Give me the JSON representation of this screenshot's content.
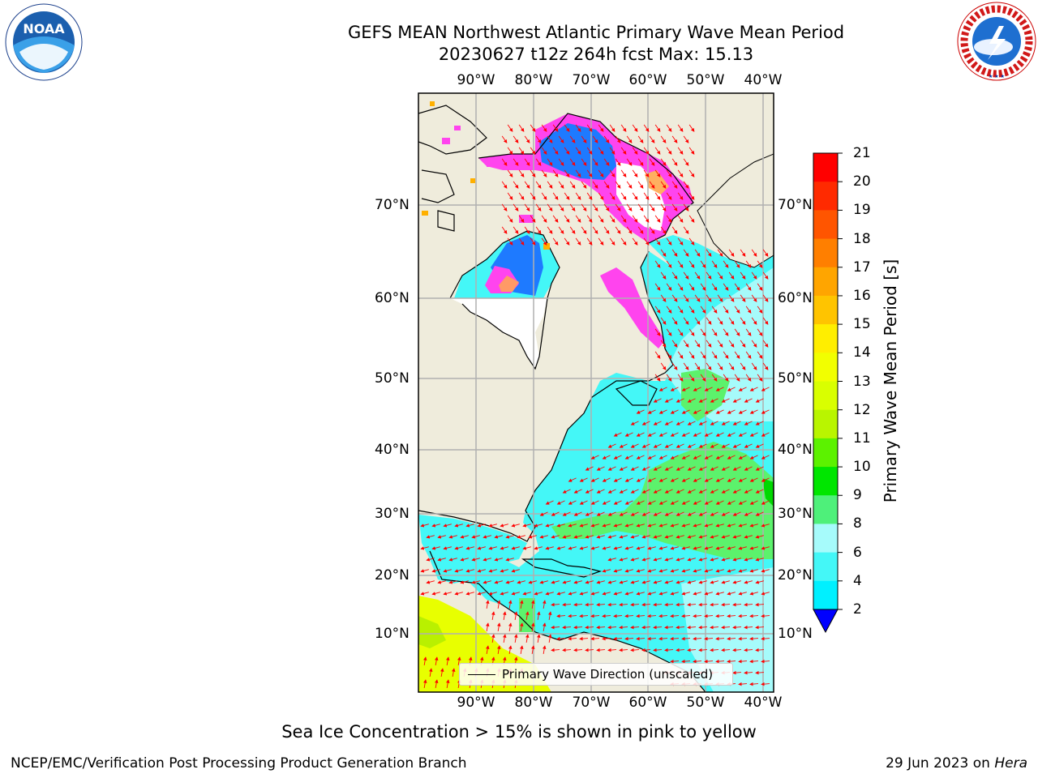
{
  "title": {
    "line1": "GEFS MEAN Northwest Atlantic Primary Wave Mean Period",
    "line2": "20230627 t12z 264h fcst   Max: 15.13"
  },
  "logos": {
    "left": {
      "text": "NOAA",
      "icon": "noaa-logo-icon"
    },
    "right": {
      "text": "NATIONAL WEATHER SERVICE",
      "icon": "nws-logo-icon"
    }
  },
  "map": {
    "lon_ticks": [
      "90°W",
      "80°W",
      "70°W",
      "60°W",
      "50°W",
      "40°W"
    ],
    "lat_ticks": [
      "70°N",
      "60°N",
      "50°N",
      "40°N",
      "30°N",
      "20°N",
      "10°N"
    ],
    "legend_label": "Primary Wave Direction (unscaled)",
    "colors": {
      "land": "#efecdc",
      "ocean_short_period": "#44f7f7",
      "ocean_light": "#a6fbfb",
      "ocean_green": "#5cf26c",
      "ice_pink": "#ff44ee",
      "ice_blue": "#1e7aff",
      "arrow": "#ff0000",
      "grid": "#b0b0b0"
    }
  },
  "colorbar": {
    "title": "Primary Wave Mean Period [s]",
    "labels": [
      "21",
      "20",
      "19",
      "18",
      "17",
      "16",
      "15",
      "14",
      "13",
      "12",
      "11",
      "10",
      "9",
      "8",
      "6",
      "4",
      "2"
    ],
    "colors": [
      "#ff0000",
      "#ff2a00",
      "#ff5500",
      "#ff7f00",
      "#ffa500",
      "#ffc400",
      "#ffee00",
      "#f2ff00",
      "#d9ff00",
      "#b9f500",
      "#5cf200",
      "#00e600",
      "#4ef07a",
      "#a6fbfb",
      "#44f7f7",
      "#00f0ff",
      "#0077ff"
    ],
    "under_color": "#0000ff"
  },
  "caption": "Sea Ice Concentration > 15% is shown in pink to yellow",
  "footer": {
    "left": "NCEP/EMC/Verification Post Processing Product Generation Branch",
    "right_date": "29 Jun 2023 on",
    "right_host": "Hera"
  }
}
